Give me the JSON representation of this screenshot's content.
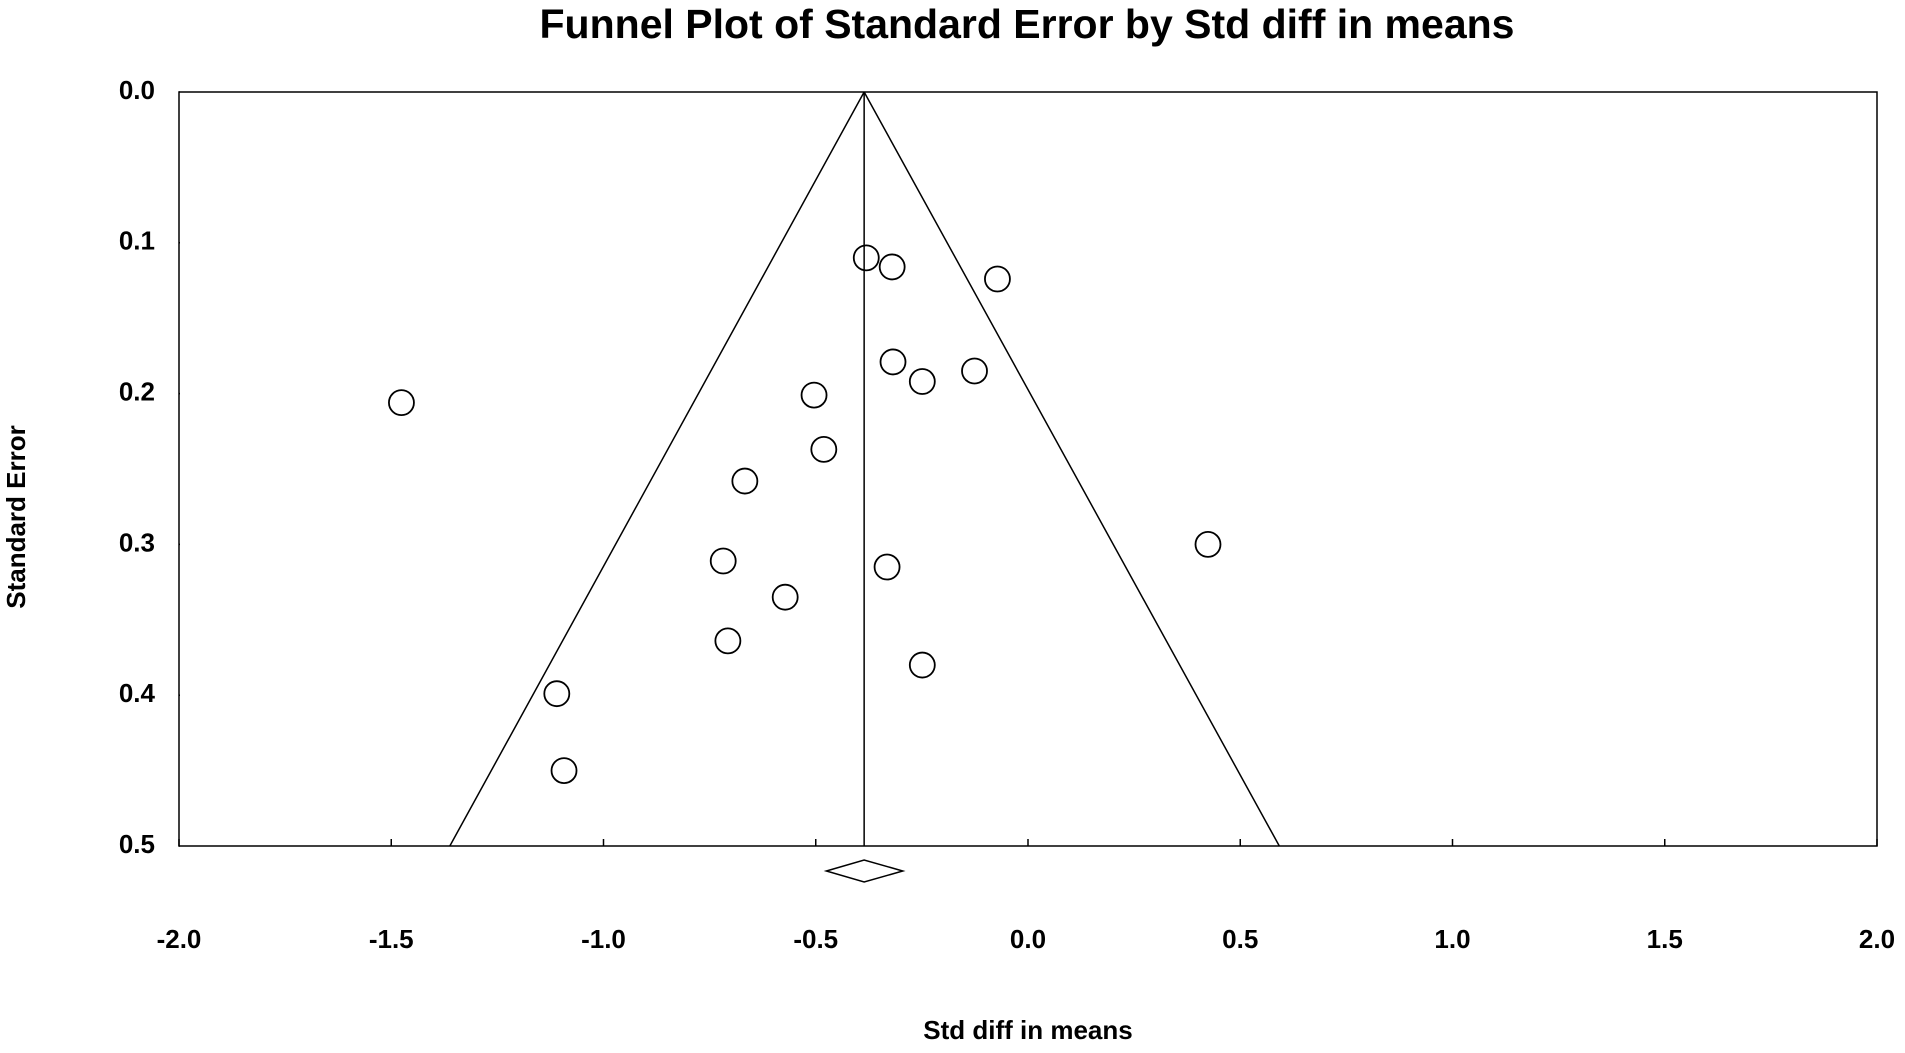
{
  "chart_data": {
    "type": "scatter",
    "title": "Funnel Plot of Standard Error by Std diff in means",
    "x_label": "Std diff in means",
    "y_label": "Standard Error",
    "xlim": [
      -2,
      2
    ],
    "ylim": [
      0,
      0.5
    ],
    "y_inverted": true,
    "xticks": [
      {
        "value": -2,
        "label": "-2.0"
      },
      -1.5,
      {
        "value": -1,
        "label": "-1.0"
      },
      -0.5,
      {
        "value": 0,
        "label": "0.0"
      },
      0.5,
      {
        "value": 1,
        "label": "1.0"
      },
      1.5,
      {
        "value": 2,
        "label": "2.0"
      }
    ],
    "yticks": [
      {
        "value": 0,
        "label": "0.0"
      },
      0.1,
      0.2,
      0.3,
      0.4,
      0.5
    ],
    "series": [
      {
        "color": "#000000",
        "x": [
          -0.381,
          -0.32,
          -0.072,
          -0.318,
          -0.126,
          -0.249,
          -0.504,
          -1.476,
          -0.481,
          -0.667,
          0.424,
          -0.718,
          -0.332,
          -0.572,
          -0.707,
          -0.249,
          -1.11,
          -1.093
        ],
        "values": [
          0.11,
          0.116,
          0.124,
          0.179,
          0.185,
          0.192,
          0.201,
          0.206,
          0.237,
          0.258,
          0.3,
          0.311,
          0.315,
          0.335,
          0.364,
          0.38,
          0.399,
          0.45
        ]
      }
    ],
    "pooled": {
      "estimate": -0.386,
      "ci": [
        -0.475,
        -0.295
      ]
    },
    "funnel": {
      "left": -1.362,
      "right": 0.592
    }
  }
}
